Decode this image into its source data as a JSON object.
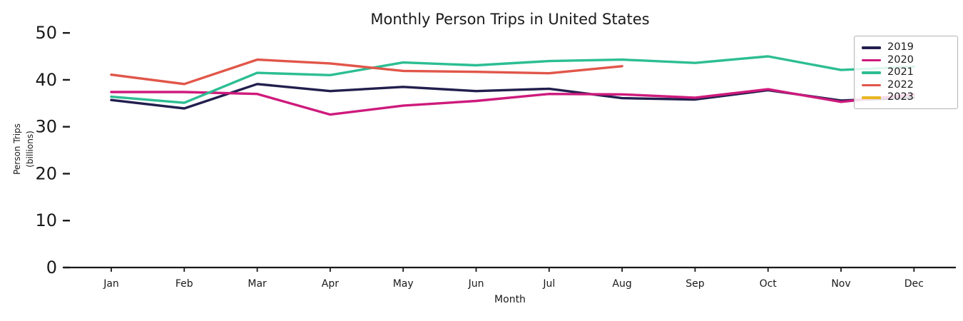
{
  "title": "Monthly Person Trips in United States",
  "chart_data": {
    "type": "line",
    "title": "Monthly Person Trips in United States",
    "xlabel": "Month",
    "ylabel_line1": "Person Trips",
    "ylabel_line2": "(billions)",
    "categories": [
      "Jan",
      "Feb",
      "Mar",
      "Apr",
      "May",
      "Jun",
      "Jul",
      "Aug",
      "Sep",
      "Oct",
      "Nov",
      "Dec"
    ],
    "y_ticks": [
      0,
      10,
      20,
      30,
      40,
      50
    ],
    "ylim": [
      0,
      52
    ],
    "grid": false,
    "legend_position": "upper right",
    "axis_color": "#1a1a1a",
    "series": [
      {
        "name": "2019",
        "color": "#221f4e",
        "values": [
          35.7,
          33.9,
          39.1,
          37.6,
          38.5,
          37.6,
          38.1,
          36.1,
          35.8,
          37.8,
          35.6,
          36.2
        ]
      },
      {
        "name": "2020",
        "color": "#ce1a7c",
        "values": [
          37.4,
          37.4,
          37.0,
          32.6,
          34.5,
          35.5,
          37.0,
          36.9,
          36.2,
          38.0,
          35.3,
          36.9
        ]
      },
      {
        "name": "2021",
        "color": "#2cbe93",
        "values": [
          36.4,
          35.1,
          41.5,
          41.0,
          43.7,
          43.1,
          44.0,
          44.3,
          43.6,
          45.0,
          42.1,
          42.8
        ]
      },
      {
        "name": "2022",
        "color": "#e1564a",
        "values": [
          41.1,
          39.1,
          44.3,
          43.5,
          41.9,
          41.7,
          41.4,
          42.9
        ]
      },
      {
        "name": "2023",
        "color": "#e8b71f",
        "values": []
      }
    ]
  }
}
